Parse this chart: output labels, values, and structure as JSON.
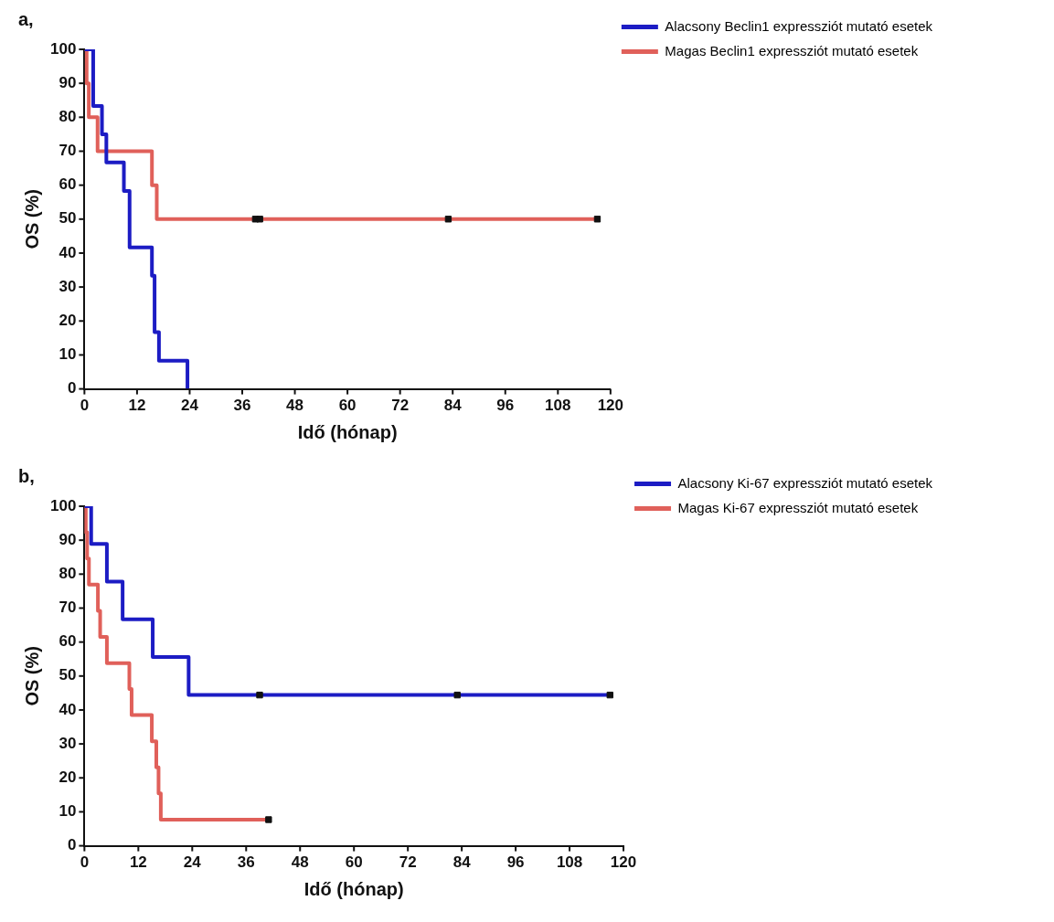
{
  "chart_data": [
    {
      "type": "step",
      "title": "a,",
      "xlabel": "Idő (hónap)",
      "ylabel": "OS (%)",
      "xlim": [
        0,
        120
      ],
      "xticks": [
        0,
        12,
        24,
        36,
        48,
        60,
        72,
        84,
        96,
        108,
        120
      ],
      "ylim": [
        0,
        100
      ],
      "yticks": [
        0,
        10,
        20,
        30,
        40,
        50,
        60,
        70,
        80,
        90,
        100
      ],
      "grid": false,
      "legend": "top right",
      "marker": "none",
      "line_style": "solid",
      "series": [
        {
          "name": "Alacsony Beclin1 expressziót mutató esetek",
          "color": "#1c1cc4",
          "x": [
            0,
            2,
            4,
            5,
            9,
            10.3,
            15.4,
            16,
            17,
            23.5
          ],
          "values": [
            100,
            83.3,
            75,
            66.7,
            58.3,
            41.7,
            33.3,
            16.7,
            8.3,
            0
          ]
        },
        {
          "name": "Magas Beclin1 expressziót mutató esetek",
          "color": "#e0605a",
          "x": [
            0,
            0.5,
            1,
            3,
            15.4,
            16.5,
            117
          ],
          "values": [
            100,
            90,
            80,
            70,
            60,
            50,
            50
          ]
        },
        {
          "type": "scatter",
          "color": "#111111",
          "marker": "square",
          "x": [
            39,
            40,
            83,
            117
          ],
          "values": [
            50,
            50,
            50,
            50
          ]
        }
      ]
    },
    {
      "type": "step",
      "title": "b,",
      "xlabel": "Idő (hónap)",
      "ylabel": "OS (%)",
      "xlim": [
        0,
        120
      ],
      "xticks": [
        0,
        12,
        24,
        36,
        48,
        60,
        72,
        84,
        96,
        108,
        120
      ],
      "ylim": [
        0,
        100
      ],
      "yticks": [
        0,
        10,
        20,
        30,
        40,
        50,
        60,
        70,
        80,
        90,
        100
      ],
      "grid": false,
      "legend": "top right",
      "marker": "none",
      "line_style": "solid",
      "series": [
        {
          "name": "Alacsony Ki-67 expressziót mutató esetek",
          "color": "#1c1cc4",
          "x": [
            0,
            1.5,
            5,
            8.5,
            15.2,
            23.2,
            117
          ],
          "values": [
            100,
            88.9,
            77.8,
            66.7,
            55.6,
            44.4,
            44.4
          ]
        },
        {
          "name": "Magas Ki-67 expressziót mutató esetek",
          "color": "#e0605a",
          "x": [
            0,
            0.3,
            0.6,
            1,
            3,
            3.5,
            5,
            10,
            10.5,
            15,
            16,
            16.5,
            17,
            41
          ],
          "values": [
            100,
            92.3,
            84.6,
            76.9,
            69.2,
            61.5,
            53.8,
            46.2,
            38.5,
            30.8,
            23.1,
            15.4,
            7.7,
            7.7
          ]
        },
        {
          "type": "scatter",
          "color": "#111111",
          "marker": "square",
          "x": [
            39,
            83,
            117,
            41
          ],
          "values": [
            44.4,
            44.4,
            44.4,
            7.7
          ]
        }
      ]
    }
  ]
}
